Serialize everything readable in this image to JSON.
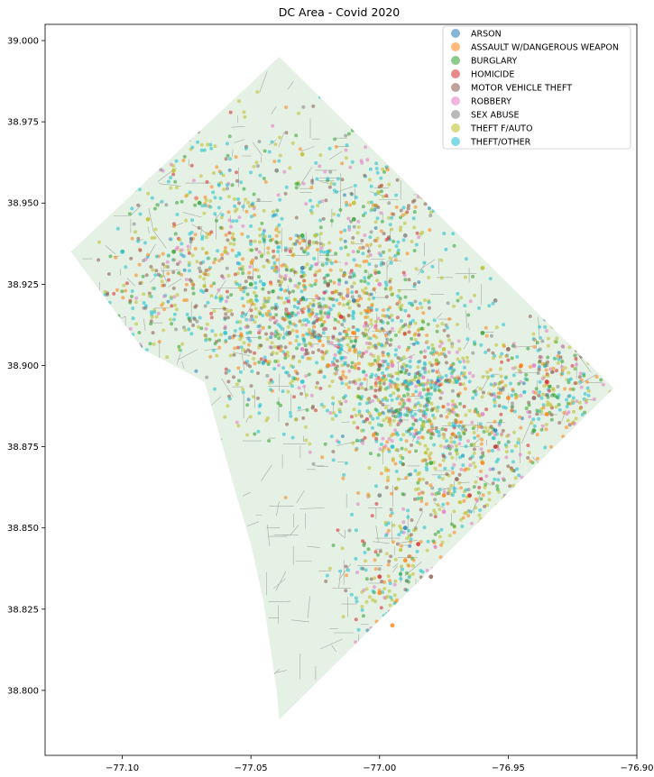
{
  "title": "DC Area - Covid 2020",
  "chart_data": {
    "type": "scatter",
    "title": "DC Area - Covid 2020",
    "xlabel": "",
    "ylabel": "",
    "xlim": [
      -77.13,
      -76.9
    ],
    "ylim": [
      38.78,
      39.005
    ],
    "x_ticks": [
      -77.1,
      -77.05,
      -77.0,
      -76.95,
      -76.9
    ],
    "x_tick_labels": [
      "−77.10",
      "−77.05",
      "−77.00",
      "−76.95",
      "−76.90"
    ],
    "y_ticks": [
      38.8,
      38.825,
      38.85,
      38.875,
      38.9,
      38.925,
      38.95,
      38.975,
      39.0
    ],
    "y_tick_labels": [
      "38.800",
      "38.825",
      "38.850",
      "38.875",
      "38.900",
      "38.925",
      "38.950",
      "38.975",
      "39.000"
    ],
    "grid": false,
    "legend_position": "top-right",
    "boundary_color": "#e5f1e4",
    "road_color": "#6f6f6f",
    "boundary_polygon": [
      [
        -77.039,
        38.995
      ],
      [
        -76.909,
        38.893
      ],
      [
        -77.039,
        38.791
      ],
      [
        -77.04,
        38.8
      ],
      [
        -77.045,
        38.827
      ],
      [
        -77.05,
        38.845
      ],
      [
        -77.056,
        38.861
      ],
      [
        -77.062,
        38.878
      ],
      [
        -77.068,
        38.895
      ],
      [
        -77.092,
        38.905
      ],
      [
        -77.105,
        38.919
      ],
      [
        -77.12,
        38.935
      ]
    ],
    "series": [
      {
        "name": "ARSON",
        "color": "#1f77b4",
        "points": [
          [
            -77.01,
            38.92
          ],
          [
            -76.985,
            38.895
          ],
          [
            -76.955,
            38.88
          ],
          [
            -77.03,
            38.93
          ],
          [
            -76.99,
            38.85
          ]
        ]
      },
      {
        "name": "ASSAULT W/DANGEROUS WEAPON",
        "color": "#ff7f0e",
        "points": [
          [
            -76.99,
            38.84
          ],
          [
            -76.975,
            38.86
          ],
          [
            -76.95,
            38.89
          ],
          [
            -76.935,
            38.885
          ],
          [
            -77.0,
            38.83
          ],
          [
            -77.01,
            38.91
          ],
          [
            -76.96,
            38.87
          ],
          [
            -76.995,
            38.82
          ],
          [
            -76.945,
            38.9
          ],
          [
            -77.02,
            38.9
          ]
        ]
      },
      {
        "name": "BURGLARY",
        "color": "#2ca02c",
        "points": [
          [
            -77.03,
            38.94
          ],
          [
            -77.07,
            38.95
          ],
          [
            -76.96,
            38.91
          ],
          [
            -76.98,
            38.87
          ],
          [
            -77.05,
            38.925
          ],
          [
            -77.01,
            38.945
          ],
          [
            -76.94,
            38.88
          ],
          [
            -77.08,
            38.935
          ]
        ]
      },
      {
        "name": "HOMICIDE",
        "color": "#d62728",
        "points": [
          [
            -76.985,
            38.845
          ],
          [
            -76.965,
            38.86
          ],
          [
            -76.935,
            38.895
          ],
          [
            -77.0,
            38.835
          ],
          [
            -76.955,
            38.875
          ],
          [
            -77.015,
            38.915
          ]
        ]
      },
      {
        "name": "MOTOR VEHICLE THEFT",
        "color": "#8c564b",
        "points": [
          [
            -76.97,
            38.865
          ],
          [
            -77.0,
            38.9
          ],
          [
            -76.94,
            38.89
          ],
          [
            -76.98,
            38.835
          ],
          [
            -77.02,
            38.925
          ],
          [
            -76.95,
            38.905
          ],
          [
            -77.035,
            38.91
          ]
        ]
      },
      {
        "name": "ROBBERY",
        "color": "#e377c2",
        "points": [
          [
            -77.02,
            38.915
          ],
          [
            -76.995,
            38.9
          ],
          [
            -76.96,
            38.885
          ],
          [
            -76.94,
            38.9
          ],
          [
            -77.03,
            38.905
          ],
          [
            -76.975,
            38.855
          ],
          [
            -77.0,
            38.925
          ]
        ]
      },
      {
        "name": "SEX ABUSE",
        "color": "#7f7f7f",
        "points": [
          [
            -77.04,
            38.96
          ],
          [
            -76.99,
            38.94
          ],
          [
            -77.0,
            38.86
          ],
          [
            -76.955,
            38.92
          ]
        ]
      },
      {
        "name": "THEFT F/AUTO",
        "color": "#bcbd22",
        "points": [
          [
            -77.025,
            38.94
          ],
          [
            -77.05,
            38.92
          ],
          [
            -77.08,
            38.96
          ],
          [
            -76.975,
            38.905
          ],
          [
            -77.0,
            38.885
          ],
          [
            -77.03,
            38.965
          ],
          [
            -77.06,
            38.935
          ],
          [
            -77.09,
            38.945
          ],
          [
            -76.96,
            38.93
          ],
          [
            -77.01,
            38.95
          ]
        ]
      },
      {
        "name": "THEFT/OTHER",
        "color": "#17becf",
        "points": [
          [
            -77.035,
            38.915
          ],
          [
            -77.015,
            38.905
          ],
          [
            -76.99,
            38.895
          ],
          [
            -77.06,
            38.91
          ],
          [
            -77.045,
            38.925
          ],
          [
            -77.02,
            38.935
          ],
          [
            -76.995,
            38.875
          ],
          [
            -77.1,
            38.935
          ],
          [
            -76.97,
            38.895
          ],
          [
            -77.03,
            38.895
          ]
        ]
      }
    ]
  }
}
